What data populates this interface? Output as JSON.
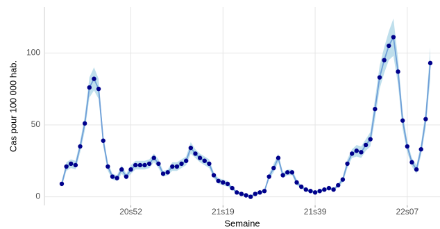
{
  "chart_data": {
    "type": "line",
    "y_label": "Cas pour 100 000 hab.",
    "x_label": "Semaine",
    "categories": [
      null,
      null,
      null,
      null,
      null,
      null,
      null,
      null,
      null,
      null,
      null,
      null,
      null,
      null,
      null,
      "20s52",
      null,
      null,
      null,
      null,
      null,
      null,
      null,
      null,
      null,
      null,
      null,
      null,
      null,
      null,
      null,
      null,
      null,
      null,
      null,
      "21s19",
      null,
      null,
      null,
      null,
      null,
      null,
      null,
      null,
      null,
      null,
      null,
      null,
      null,
      null,
      null,
      null,
      null,
      null,
      null,
      "21s39",
      null,
      null,
      null,
      null,
      null,
      null,
      null,
      null,
      null,
      null,
      null,
      null,
      null,
      null,
      null,
      null,
      null,
      null,
      null,
      "22s07",
      null,
      null,
      null,
      null,
      null
    ],
    "series": [
      {
        "color": "#6f9fd8",
        "point_color": "#00008b",
        "band_color": "#a9d4e6",
        "values": [
          9,
          21,
          23,
          22,
          35,
          51,
          76,
          82,
          75,
          39,
          21,
          14,
          13,
          19,
          14,
          19,
          22,
          22,
          22,
          23,
          27,
          23,
          16,
          17,
          21,
          21,
          23,
          25,
          34,
          30,
          27,
          25,
          23,
          15,
          11,
          10,
          9,
          6,
          3,
          2,
          1,
          0,
          2,
          3,
          4,
          14,
          20,
          27,
          15,
          17,
          17,
          10,
          7,
          5,
          4,
          3,
          4,
          5,
          6,
          5,
          8,
          12,
          23,
          30,
          32,
          31,
          36,
          40,
          61,
          83,
          95,
          105,
          111,
          87,
          53,
          35,
          24,
          19,
          33,
          54,
          93
        ],
        "lower": [
          7,
          18,
          20,
          19,
          31,
          46,
          69,
          74,
          68,
          35,
          18,
          12,
          11,
          16,
          12,
          16,
          19,
          19,
          19,
          20,
          24,
          20,
          14,
          15,
          18,
          18,
          20,
          22,
          30,
          27,
          24,
          22,
          20,
          13,
          9,
          8,
          7,
          5,
          2,
          1,
          0,
          0,
          1,
          2,
          3,
          12,
          17,
          24,
          13,
          15,
          15,
          8,
          6,
          4,
          3,
          2,
          3,
          4,
          5,
          4,
          7,
          10,
          20,
          27,
          28,
          27,
          32,
          35,
          54,
          75,
          86,
          95,
          98,
          78,
          47,
          31,
          21,
          16,
          29,
          48,
          82
        ],
        "upper": [
          11,
          24,
          26,
          25,
          39,
          56,
          83,
          90,
          82,
          43,
          24,
          16,
          15,
          22,
          16,
          22,
          25,
          25,
          25,
          26,
          30,
          26,
          18,
          19,
          24,
          24,
          26,
          28,
          38,
          33,
          30,
          28,
          26,
          17,
          13,
          12,
          11,
          7,
          4,
          3,
          2,
          1,
          3,
          4,
          5,
          16,
          23,
          30,
          17,
          19,
          19,
          12,
          8,
          6,
          5,
          4,
          5,
          6,
          7,
          6,
          9,
          14,
          26,
          33,
          36,
          35,
          40,
          45,
          68,
          91,
          104,
          115,
          124,
          96,
          59,
          39,
          27,
          22,
          37,
          60,
          104
        ]
      }
    ],
    "ylim": [
      -6,
      132
    ],
    "yticks": [
      0,
      50,
      100
    ],
    "grid": true
  }
}
